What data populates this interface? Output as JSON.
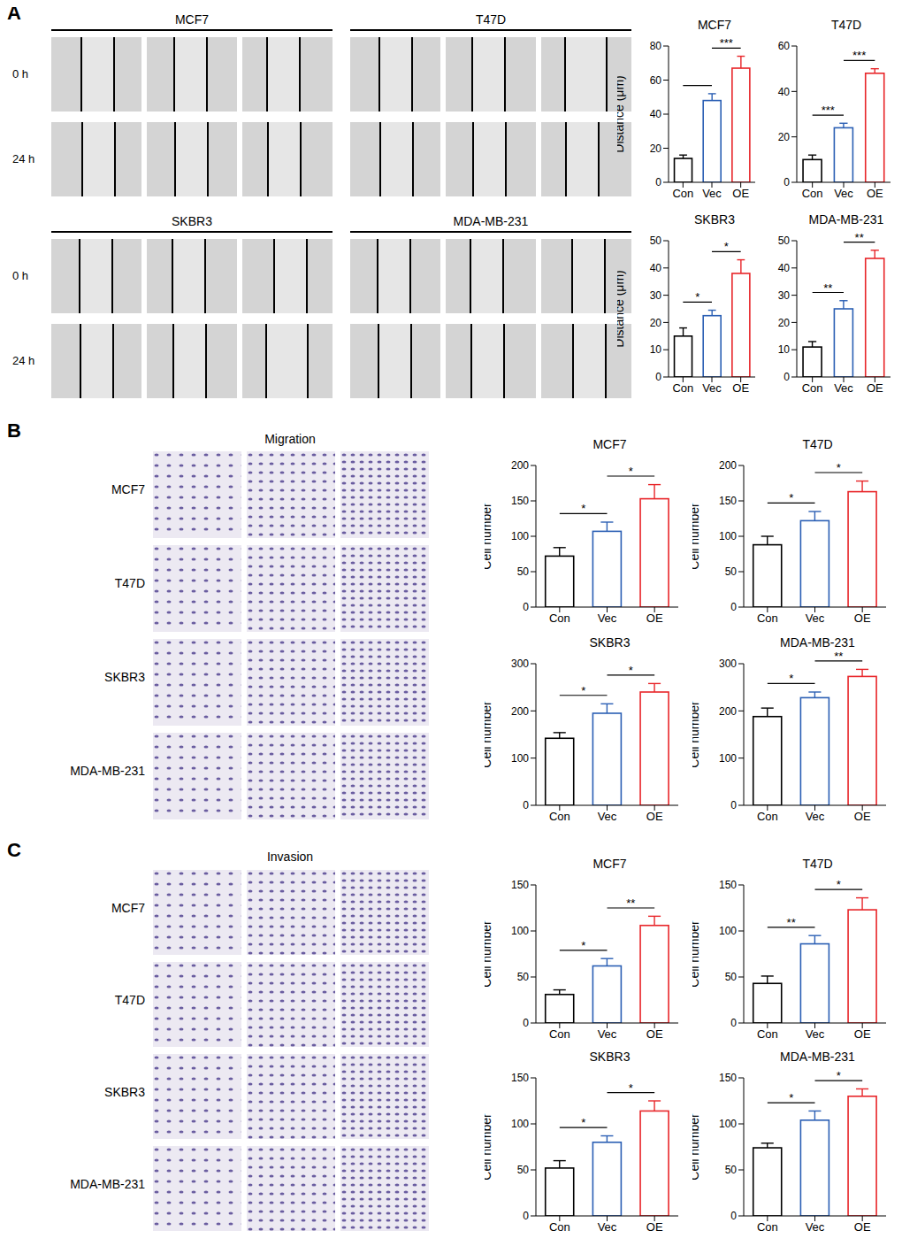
{
  "figure": {
    "panel_labels": [
      "A",
      "B",
      "C"
    ],
    "wound": {
      "cell_lines": [
        "MCF7",
        "T47D",
        "SKBR3",
        "MDA-MB-231"
      ],
      "times": [
        "0 h",
        "24 h"
      ]
    },
    "migration": {
      "title": "Migration",
      "cell_lines": [
        "MCF7",
        "T47D",
        "SKBR3",
        "MDA-MB-231"
      ]
    },
    "invasion": {
      "title": "Invasion",
      "cell_lines": [
        "MCF7",
        "T47D",
        "SKBR3",
        "MDA-MB-231"
      ]
    }
  },
  "chart_data": [
    {
      "type": "bar",
      "title": "MCF7",
      "y_label": "Distance (μm)",
      "categories": [
        "Con",
        "Vec",
        "OE"
      ],
      "values": [
        14,
        48,
        67
      ],
      "errors": [
        2,
        4,
        7
      ],
      "colors": [
        "#000000",
        "#2b5fb4",
        "#e8262a"
      ],
      "ylim": [
        0,
        80
      ],
      "yticks": [
        0,
        20,
        40,
        60,
        80
      ],
      "significance": [
        {
          "from": "Con",
          "to": "Vec"
        },
        {
          "from": "Vec",
          "to": "OE",
          "label": "***"
        }
      ]
    },
    {
      "type": "bar",
      "title": "T47D",
      "categories": [
        "Con",
        "Vec",
        "OE"
      ],
      "values": [
        10,
        24,
        48
      ],
      "errors": [
        2,
        2,
        2
      ],
      "colors": [
        "#000000",
        "#2b5fb4",
        "#e8262a"
      ],
      "ylim": [
        0,
        60
      ],
      "yticks": [
        0,
        20,
        40,
        60
      ],
      "significance": [
        {
          "from": "Con",
          "to": "Vec",
          "label": "***"
        },
        {
          "from": "Vec",
          "to": "OE",
          "label": "***"
        }
      ]
    },
    {
      "type": "bar",
      "title": "SKBR3",
      "y_label": "Distance (μm)",
      "categories": [
        "Con",
        "Vec",
        "OE"
      ],
      "values": [
        15,
        22.5,
        38
      ],
      "errors": [
        3,
        2,
        5
      ],
      "colors": [
        "#000000",
        "#2b5fb4",
        "#e8262a"
      ],
      "ylim": [
        0,
        50
      ],
      "yticks": [
        0,
        10,
        20,
        30,
        40,
        50
      ],
      "significance": [
        {
          "from": "Con",
          "to": "Vec",
          "label": "*"
        },
        {
          "from": "Vec",
          "to": "OE",
          "label": "*"
        }
      ]
    },
    {
      "type": "bar",
      "title": "MDA-MB-231",
      "categories": [
        "Con",
        "Vec",
        "OE"
      ],
      "values": [
        11,
        25,
        43.5
      ],
      "errors": [
        2,
        3,
        3
      ],
      "colors": [
        "#000000",
        "#2b5fb4",
        "#e8262a"
      ],
      "ylim": [
        0,
        50
      ],
      "yticks": [
        0,
        10,
        20,
        30,
        40,
        50
      ],
      "significance": [
        {
          "from": "Con",
          "to": "Vec",
          "label": "**"
        },
        {
          "from": "Vec",
          "to": "OE",
          "label": "**"
        }
      ]
    },
    {
      "type": "bar",
      "title": "MCF7",
      "y_label": "Cell number",
      "categories": [
        "Con",
        "Vec",
        "OE"
      ],
      "values": [
        72,
        107,
        153
      ],
      "errors": [
        12,
        13,
        20
      ],
      "colors": [
        "#000000",
        "#2b5fb4",
        "#e8262a"
      ],
      "ylim": [
        0,
        200
      ],
      "yticks": [
        0,
        50,
        100,
        150,
        200
      ],
      "significance": [
        {
          "from": "Con",
          "to": "Vec",
          "label": "*"
        },
        {
          "from": "Vec",
          "to": "OE",
          "label": "*"
        }
      ]
    },
    {
      "type": "bar",
      "title": "T47D",
      "y_label": "Cell number",
      "categories": [
        "Con",
        "Vec",
        "OE"
      ],
      "values": [
        88,
        122,
        163
      ],
      "errors": [
        12,
        13,
        15
      ],
      "colors": [
        "#000000",
        "#2b5fb4",
        "#e8262a"
      ],
      "ylim": [
        0,
        200
      ],
      "yticks": [
        0,
        50,
        100,
        150,
        200
      ],
      "significance": [
        {
          "from": "Con",
          "to": "Vec",
          "label": "*"
        },
        {
          "from": "Vec",
          "to": "OE",
          "label": "*"
        }
      ]
    },
    {
      "type": "bar",
      "title": "SKBR3",
      "y_label": "Cell number",
      "categories": [
        "Con",
        "Vec",
        "OE"
      ],
      "values": [
        142,
        195,
        240
      ],
      "errors": [
        12,
        20,
        18
      ],
      "colors": [
        "#000000",
        "#2b5fb4",
        "#e8262a"
      ],
      "ylim": [
        0,
        300
      ],
      "yticks": [
        0,
        100,
        200,
        300
      ],
      "significance": [
        {
          "from": "Con",
          "to": "Vec",
          "label": "*"
        },
        {
          "from": "Vec",
          "to": "OE",
          "label": "*"
        }
      ]
    },
    {
      "type": "bar",
      "title": "MDA-MB-231",
      "y_label": "Cell number",
      "categories": [
        "Con",
        "Vec",
        "OE"
      ],
      "values": [
        188,
        228,
        273
      ],
      "errors": [
        18,
        12,
        15
      ],
      "colors": [
        "#000000",
        "#2b5fb4",
        "#e8262a"
      ],
      "ylim": [
        0,
        300
      ],
      "yticks": [
        0,
        100,
        200,
        300
      ],
      "significance": [
        {
          "from": "Con",
          "to": "Vec",
          "label": "*"
        },
        {
          "from": "Vec",
          "to": "OE",
          "label": "**"
        }
      ]
    },
    {
      "type": "bar",
      "title": "MCF7",
      "y_label": "Cell number",
      "categories": [
        "Con",
        "Vec",
        "OE"
      ],
      "values": [
        31,
        62,
        106
      ],
      "errors": [
        5,
        8,
        10
      ],
      "colors": [
        "#000000",
        "#2b5fb4",
        "#e8262a"
      ],
      "ylim": [
        0,
        150
      ],
      "yticks": [
        0,
        50,
        100,
        150
      ],
      "significance": [
        {
          "from": "Con",
          "to": "Vec",
          "label": "*"
        },
        {
          "from": "Vec",
          "to": "OE",
          "label": "**"
        }
      ]
    },
    {
      "type": "bar",
      "title": "T47D",
      "y_label": "Cell number",
      "categories": [
        "Con",
        "Vec",
        "OE"
      ],
      "values": [
        43,
        86,
        123
      ],
      "errors": [
        8,
        9,
        13
      ],
      "colors": [
        "#000000",
        "#2b5fb4",
        "#e8262a"
      ],
      "ylim": [
        0,
        150
      ],
      "yticks": [
        0,
        50,
        100,
        150
      ],
      "significance": [
        {
          "from": "Con",
          "to": "Vec",
          "label": "**"
        },
        {
          "from": "Vec",
          "to": "OE",
          "label": "*"
        }
      ]
    },
    {
      "type": "bar",
      "title": "SKBR3",
      "y_label": "Cell number",
      "categories": [
        "Con",
        "Vec",
        "OE"
      ],
      "values": [
        52,
        80,
        114
      ],
      "errors": [
        8,
        7,
        11
      ],
      "colors": [
        "#000000",
        "#2b5fb4",
        "#e8262a"
      ],
      "ylim": [
        0,
        150
      ],
      "yticks": [
        0,
        50,
        100,
        150
      ],
      "significance": [
        {
          "from": "Con",
          "to": "Vec",
          "label": "*"
        },
        {
          "from": "Vec",
          "to": "OE",
          "label": "*"
        }
      ]
    },
    {
      "type": "bar",
      "title": "MDA-MB-231",
      "y_label": "Cell number",
      "categories": [
        "Con",
        "Vec",
        "OE"
      ],
      "values": [
        74,
        104,
        130
      ],
      "errors": [
        5,
        10,
        8
      ],
      "colors": [
        "#000000",
        "#2b5fb4",
        "#e8262a"
      ],
      "ylim": [
        0,
        150
      ],
      "yticks": [
        0,
        50,
        100,
        150
      ],
      "significance": [
        {
          "from": "Con",
          "to": "Vec",
          "label": "*"
        },
        {
          "from": "Vec",
          "to": "OE",
          "label": "*"
        }
      ]
    }
  ]
}
